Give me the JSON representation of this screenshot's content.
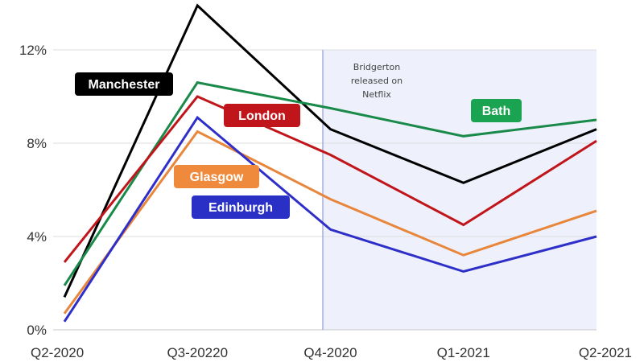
{
  "chart_data": {
    "type": "line",
    "title": "",
    "xlabel": "",
    "ylabel": "",
    "categories": [
      "Q2-2020",
      "Q3-20220",
      "Q4-2020",
      "Q1-2021",
      "Q2-2021"
    ],
    "ylim": [
      0,
      13.5
    ],
    "yticks": [
      {
        "value": 0,
        "label": "0%"
      },
      {
        "value": 4,
        "label": "4%"
      },
      {
        "value": 8,
        "label": "8%"
      },
      {
        "value": 12,
        "label": "12%"
      }
    ],
    "grid": true,
    "series": [
      {
        "name": "Manchester",
        "color": "#000000",
        "label_color": "#000000",
        "values": [
          1.4,
          13.9,
          8.6,
          6.3,
          8.6
        ]
      },
      {
        "name": "Bath",
        "color": "#1a8a4a",
        "label_color": "#1aa351",
        "values": [
          1.9,
          10.6,
          9.5,
          8.3,
          9.0
        ]
      },
      {
        "name": "London",
        "color": "#c0161b",
        "label_color": "#c0161b",
        "values": [
          2.9,
          10.0,
          7.5,
          4.5,
          8.1
        ]
      },
      {
        "name": "Glasgow",
        "color": "#e8863c",
        "label_color": "#ef8a3c",
        "values": [
          0.7,
          8.5,
          5.6,
          3.2,
          5.1
        ]
      },
      {
        "name": "Edinburgh",
        "color": "#2e2fc9",
        "label_color": "#2a2fc6",
        "values": [
          0.35,
          9.1,
          4.3,
          2.5,
          4.0
        ]
      }
    ],
    "highlight_region": {
      "from_category": "Q4-2020",
      "to_category": "Q2-2021",
      "color": "#eef1fb"
    },
    "annotation": {
      "lines": [
        "Bridgerton",
        "released on",
        "Netflix"
      ]
    }
  }
}
